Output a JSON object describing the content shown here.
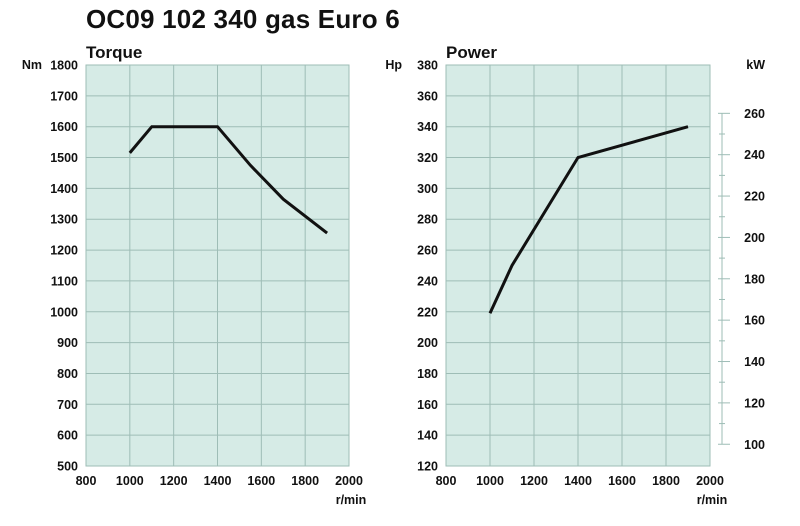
{
  "page": {
    "title": "OC09 102 340 gas Euro 6"
  },
  "colors": {
    "plot_bg": "#d6ebe6",
    "grid": "#9ebdb6",
    "line": "#111111"
  },
  "chart_data": [
    {
      "type": "line",
      "title": "Torque",
      "ylabel": "Nm",
      "xlabel": "r/min",
      "xlim": [
        800,
        2000
      ],
      "xticks": [
        800,
        1000,
        1200,
        1400,
        1600,
        1800,
        2000
      ],
      "ylim": [
        500,
        1800
      ],
      "yticks": [
        500,
        600,
        700,
        800,
        900,
        1000,
        1100,
        1200,
        1300,
        1400,
        1500,
        1600,
        1700,
        1800
      ],
      "grid": true,
      "series": [
        {
          "x": [
            1000,
            1100,
            1200,
            1300,
            1400,
            1550,
            1700,
            1900
          ],
          "y": [
            1515,
            1600,
            1600,
            1600,
            1600,
            1475,
            1365,
            1255
          ]
        }
      ]
    },
    {
      "type": "line",
      "title": "Power",
      "ylabel": "Hp",
      "y2label": "kW",
      "xlabel": "r/min",
      "xlim": [
        800,
        2000
      ],
      "xticks": [
        800,
        1000,
        1200,
        1400,
        1600,
        1800,
        2000
      ],
      "ylim": [
        120,
        380
      ],
      "yticks": [
        120,
        140,
        160,
        180,
        200,
        220,
        240,
        260,
        280,
        300,
        320,
        340,
        360,
        380
      ],
      "y2ticks": [
        100,
        120,
        140,
        160,
        180,
        200,
        220,
        240,
        260
      ],
      "grid": true,
      "series": [
        {
          "x": [
            1000,
            1100,
            1400,
            1900
          ],
          "y": [
            219,
            250,
            320,
            340
          ]
        }
      ]
    }
  ]
}
